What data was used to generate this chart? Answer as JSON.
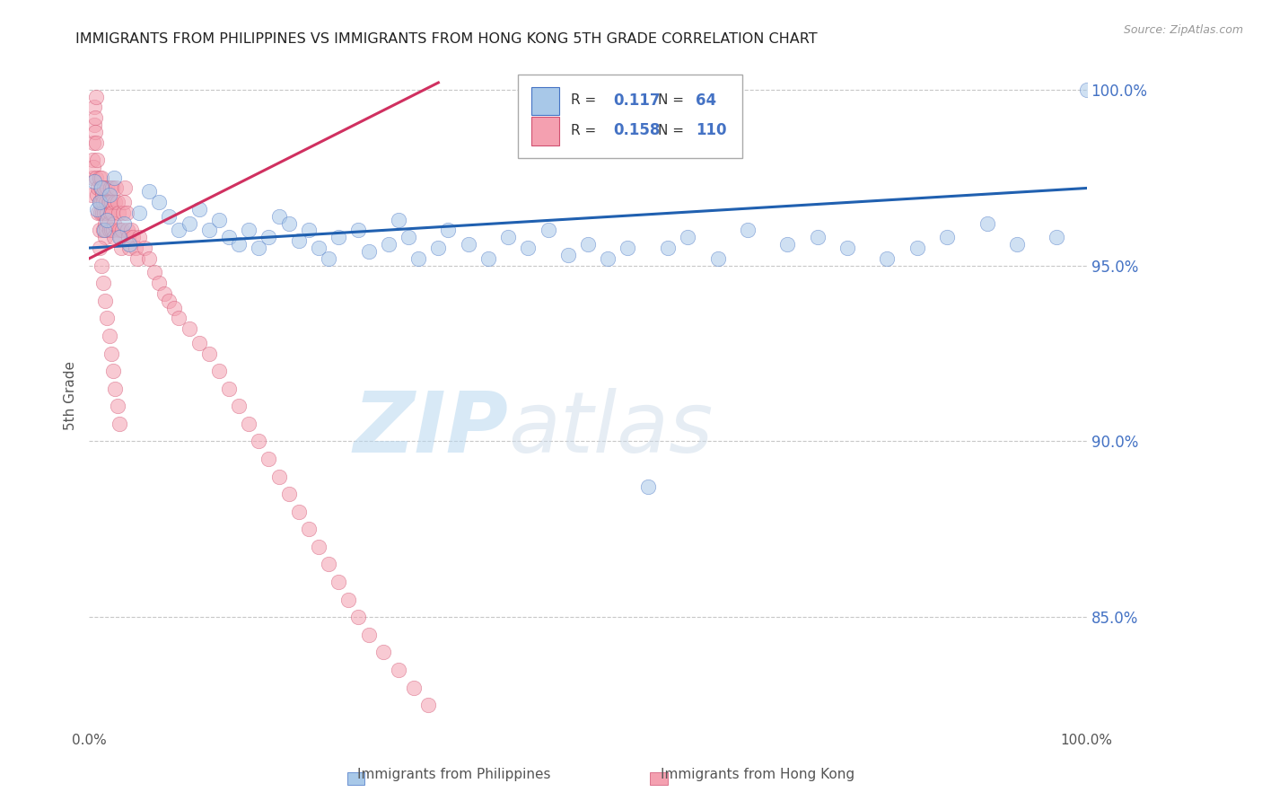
{
  "title": "IMMIGRANTS FROM PHILIPPINES VS IMMIGRANTS FROM HONG KONG 5TH GRADE CORRELATION CHART",
  "source": "Source: ZipAtlas.com",
  "ylabel": "5th Grade",
  "xlabel_label1": "Immigrants from Philippines",
  "xlabel_label2": "Immigrants from Hong Kong",
  "watermark_zip": "ZIP",
  "watermark_atlas": "atlas",
  "x_min": 0.0,
  "x_max": 1.0,
  "y_min": 0.818,
  "y_max": 1.008,
  "yticks": [
    0.85,
    0.9,
    0.95,
    1.0
  ],
  "ytick_labels": [
    "85.0%",
    "90.0%",
    "95.0%",
    "100.0%"
  ],
  "r_philippines": 0.117,
  "n_philippines": 64,
  "r_hongkong": 0.158,
  "n_hongkong": 110,
  "color_philippines_fill": "#a8c8e8",
  "color_philippines_edge": "#4472c4",
  "color_hongkong_fill": "#f4a0b0",
  "color_hongkong_edge": "#d05070",
  "color_line_philippines": "#2060b0",
  "color_line_hongkong": "#d03060",
  "color_ytick_labels": "#4472c4",
  "color_grid": "#c8c8c8",
  "title_color": "#222222",
  "philippines_x": [
    0.005,
    0.008,
    0.01,
    0.012,
    0.015,
    0.018,
    0.02,
    0.025,
    0.03,
    0.035,
    0.04,
    0.05,
    0.06,
    0.07,
    0.08,
    0.09,
    0.1,
    0.11,
    0.12,
    0.13,
    0.14,
    0.15,
    0.16,
    0.17,
    0.18,
    0.19,
    0.2,
    0.21,
    0.22,
    0.23,
    0.24,
    0.25,
    0.27,
    0.28,
    0.3,
    0.31,
    0.32,
    0.33,
    0.35,
    0.36,
    0.38,
    0.4,
    0.42,
    0.44,
    0.46,
    0.48,
    0.5,
    0.52,
    0.54,
    0.56,
    0.58,
    0.6,
    0.63,
    0.66,
    0.7,
    0.73,
    0.76,
    0.8,
    0.83,
    0.86,
    0.9,
    0.93,
    0.97,
    1.0
  ],
  "philippines_y": [
    0.974,
    0.966,
    0.968,
    0.972,
    0.96,
    0.963,
    0.97,
    0.975,
    0.958,
    0.962,
    0.956,
    0.965,
    0.971,
    0.968,
    0.964,
    0.96,
    0.962,
    0.966,
    0.96,
    0.963,
    0.958,
    0.956,
    0.96,
    0.955,
    0.958,
    0.964,
    0.962,
    0.957,
    0.96,
    0.955,
    0.952,
    0.958,
    0.96,
    0.954,
    0.956,
    0.963,
    0.958,
    0.952,
    0.955,
    0.96,
    0.956,
    0.952,
    0.958,
    0.955,
    0.96,
    0.953,
    0.956,
    0.952,
    0.955,
    0.887,
    0.955,
    0.958,
    0.952,
    0.96,
    0.956,
    0.958,
    0.955,
    0.952,
    0.955,
    0.958,
    0.962,
    0.956,
    0.958,
    1.0
  ],
  "hongkong_x": [
    0.002,
    0.003,
    0.003,
    0.004,
    0.004,
    0.005,
    0.005,
    0.006,
    0.006,
    0.007,
    0.007,
    0.007,
    0.008,
    0.008,
    0.009,
    0.009,
    0.01,
    0.01,
    0.01,
    0.011,
    0.011,
    0.012,
    0.012,
    0.013,
    0.013,
    0.014,
    0.014,
    0.015,
    0.015,
    0.016,
    0.016,
    0.017,
    0.017,
    0.018,
    0.018,
    0.019,
    0.019,
    0.02,
    0.02,
    0.021,
    0.021,
    0.022,
    0.022,
    0.023,
    0.023,
    0.024,
    0.025,
    0.025,
    0.026,
    0.027,
    0.028,
    0.029,
    0.03,
    0.031,
    0.032,
    0.033,
    0.034,
    0.035,
    0.036,
    0.037,
    0.038,
    0.039,
    0.04,
    0.042,
    0.044,
    0.046,
    0.048,
    0.05,
    0.055,
    0.06,
    0.065,
    0.07,
    0.075,
    0.08,
    0.085,
    0.09,
    0.1,
    0.11,
    0.12,
    0.13,
    0.14,
    0.15,
    0.16,
    0.17,
    0.18,
    0.19,
    0.2,
    0.21,
    0.22,
    0.23,
    0.24,
    0.25,
    0.26,
    0.27,
    0.28,
    0.295,
    0.31,
    0.325,
    0.34,
    0.01,
    0.012,
    0.014,
    0.016,
    0.018,
    0.02,
    0.022,
    0.024,
    0.026,
    0.028,
    0.03
  ],
  "hongkong_y": [
    0.97,
    0.975,
    0.98,
    0.985,
    0.978,
    0.99,
    0.995,
    0.992,
    0.988,
    0.998,
    0.985,
    0.975,
    0.98,
    0.97,
    0.972,
    0.965,
    0.968,
    0.975,
    0.96,
    0.965,
    0.972,
    0.968,
    0.975,
    0.97,
    0.965,
    0.96,
    0.968,
    0.972,
    0.965,
    0.962,
    0.958,
    0.96,
    0.968,
    0.965,
    0.972,
    0.968,
    0.962,
    0.96,
    0.968,
    0.972,
    0.965,
    0.96,
    0.968,
    0.972,
    0.965,
    0.96,
    0.958,
    0.962,
    0.968,
    0.972,
    0.968,
    0.965,
    0.96,
    0.958,
    0.955,
    0.96,
    0.965,
    0.968,
    0.972,
    0.965,
    0.96,
    0.958,
    0.955,
    0.96,
    0.958,
    0.955,
    0.952,
    0.958,
    0.955,
    0.952,
    0.948,
    0.945,
    0.942,
    0.94,
    0.938,
    0.935,
    0.932,
    0.928,
    0.925,
    0.92,
    0.915,
    0.91,
    0.905,
    0.9,
    0.895,
    0.89,
    0.885,
    0.88,
    0.875,
    0.87,
    0.865,
    0.86,
    0.855,
    0.85,
    0.845,
    0.84,
    0.835,
    0.83,
    0.825,
    0.955,
    0.95,
    0.945,
    0.94,
    0.935,
    0.93,
    0.925,
    0.92,
    0.915,
    0.91,
    0.905
  ],
  "phil_trend_x0": 0.0,
  "phil_trend_x1": 1.0,
  "phil_trend_y0": 0.955,
  "phil_trend_y1": 0.972,
  "hk_trend_x0": 0.0,
  "hk_trend_x1": 0.35,
  "hk_trend_y0": 0.952,
  "hk_trend_y1": 1.002
}
